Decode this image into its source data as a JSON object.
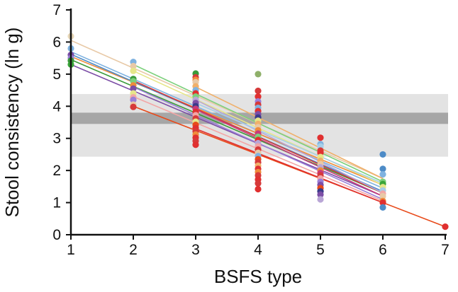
{
  "chart_data": {
    "type": "scatter",
    "xlabel": "BSFS type",
    "ylabel": "Stool consistency (ln g)",
    "xlim": [
      1,
      7
    ],
    "ylim": [
      0,
      7
    ],
    "xticks": [
      "1",
      "2",
      "3",
      "4",
      "5",
      "6",
      "7"
    ],
    "yticks": [
      "0",
      "1",
      "2",
      "3",
      "4",
      "5",
      "6",
      "7"
    ],
    "grid": false,
    "legend": "none",
    "bands": [
      {
        "name": "outer",
        "y0": 2.43,
        "y1": 4.38,
        "color": "#e3e3e3"
      },
      {
        "name": "inner",
        "y0": 3.45,
        "y1": 3.8,
        "color": "#a6a6a6"
      }
    ],
    "fit_lines": [
      {
        "color": "#e8c9a6",
        "x0": 1,
        "y0": 6.05,
        "x1": 6,
        "y1": 1.75
      },
      {
        "color": "#7fb2e0",
        "x0": 1,
        "y0": 5.7,
        "x1": 6,
        "y1": 1.45
      },
      {
        "color": "#3a9a3a",
        "x0": 1,
        "y0": 5.45,
        "x1": 6,
        "y1": 1.3
      },
      {
        "color": "#7c4ea6",
        "x0": 1,
        "y0": 5.3,
        "x1": 6,
        "y1": 1.2
      },
      {
        "color": "#ef8c3a",
        "x0": 1,
        "y0": 5.55,
        "x1": 6,
        "y1": 1.55
      },
      {
        "color": "#4d8bc7",
        "x0": 1,
        "y0": 5.62,
        "x1": 6,
        "y1": 1.35
      },
      {
        "color": "#7cd07c",
        "x0": 2,
        "y0": 5.3,
        "x1": 6,
        "y1": 1.65
      },
      {
        "color": "#e6e68a",
        "x0": 2,
        "y0": 5.1,
        "x1": 6,
        "y1": 1.55
      },
      {
        "color": "#9a7fd8",
        "x0": 2,
        "y0": 4.6,
        "x1": 6,
        "y1": 1.1
      },
      {
        "color": "#d63a3a",
        "x0": 2,
        "y0": 4.8,
        "x1": 6,
        "y1": 1.3
      },
      {
        "color": "#f2a6a6",
        "x0": 2,
        "y0": 4.3,
        "x1": 6,
        "y1": 1.05
      },
      {
        "color": "#e84a1a",
        "x0": 2,
        "y0": 4.0,
        "x1": 7,
        "y1": 0.25
      },
      {
        "color": "#b9a6d6",
        "x0": 3,
        "y0": 4.2,
        "x1": 6,
        "y1": 1.3
      },
      {
        "color": "#e03030",
        "x0": 3,
        "y0": 3.3,
        "x1": 6,
        "y1": 1.0
      },
      {
        "color": "#f0b06a",
        "x0": 3,
        "y0": 4.6,
        "x1": 6,
        "y1": 1.75
      },
      {
        "color": "#a6cfe8",
        "x0": 3,
        "y0": 4.1,
        "x1": 6,
        "y1": 1.6
      },
      {
        "color": "#c93a7a",
        "x0": 3,
        "y0": 3.9,
        "x1": 6,
        "y1": 1.2
      }
    ],
    "points": [
      {
        "x": 1,
        "y": 6.18,
        "c": "#e8d8b8"
      },
      {
        "x": 1,
        "y": 5.8,
        "c": "#7fb2e0"
      },
      {
        "x": 1,
        "y": 5.6,
        "c": "#7c4ea6"
      },
      {
        "x": 1,
        "y": 5.5,
        "c": "#9a7fd8"
      },
      {
        "x": 1,
        "y": 5.42,
        "c": "#3a9a3a"
      },
      {
        "x": 1,
        "y": 5.3,
        "c": "#3aa63a"
      },
      {
        "x": 2,
        "y": 5.38,
        "c": "#7fb2e0"
      },
      {
        "x": 2,
        "y": 5.25,
        "c": "#e8c9a6"
      },
      {
        "x": 2,
        "y": 5.1,
        "c": "#e6e68a"
      },
      {
        "x": 2,
        "y": 4.85,
        "c": "#3a9a3a"
      },
      {
        "x": 2,
        "y": 4.78,
        "c": "#7cd07c"
      },
      {
        "x": 2,
        "y": 4.65,
        "c": "#ef8c3a"
      },
      {
        "x": 2,
        "y": 4.55,
        "c": "#7c4ea6"
      },
      {
        "x": 2,
        "y": 4.4,
        "c": "#e6e68a"
      },
      {
        "x": 2,
        "y": 4.28,
        "c": "#f2a6a6"
      },
      {
        "x": 2,
        "y": 4.2,
        "c": "#9a7fd8"
      },
      {
        "x": 2,
        "y": 4.05,
        "c": "#e8c9a6"
      },
      {
        "x": 2,
        "y": 3.98,
        "c": "#d63a3a"
      },
      {
        "x": 3,
        "y": 5.02,
        "c": "#3a9a3a"
      },
      {
        "x": 3,
        "y": 4.9,
        "c": "#d63a3a"
      },
      {
        "x": 3,
        "y": 4.82,
        "c": "#ef8c3a"
      },
      {
        "x": 3,
        "y": 4.75,
        "c": "#e8c9a6"
      },
      {
        "x": 3,
        "y": 4.62,
        "c": "#f0b06a"
      },
      {
        "x": 3,
        "y": 4.5,
        "c": "#7fb2e0"
      },
      {
        "x": 3,
        "y": 4.4,
        "c": "#e03030"
      },
      {
        "x": 3,
        "y": 4.3,
        "c": "#7cd07c"
      },
      {
        "x": 3,
        "y": 4.2,
        "c": "#b9a6d6"
      },
      {
        "x": 3,
        "y": 4.1,
        "c": "#7c4ea6"
      },
      {
        "x": 3,
        "y": 4.0,
        "c": "#3a3a8a"
      },
      {
        "x": 3,
        "y": 3.92,
        "c": "#c93a7a"
      },
      {
        "x": 3,
        "y": 3.82,
        "c": "#e03030"
      },
      {
        "x": 3,
        "y": 3.72,
        "c": "#f2a6a6"
      },
      {
        "x": 3,
        "y": 3.62,
        "c": "#d63a3a"
      },
      {
        "x": 3,
        "y": 3.52,
        "c": "#e6e68a"
      },
      {
        "x": 3,
        "y": 3.42,
        "c": "#e84a1a"
      },
      {
        "x": 3,
        "y": 3.32,
        "c": "#e03030"
      },
      {
        "x": 3,
        "y": 3.22,
        "c": "#d63a3a"
      },
      {
        "x": 3,
        "y": 3.12,
        "c": "#ef8c3a"
      },
      {
        "x": 3,
        "y": 3.02,
        "c": "#e03030"
      },
      {
        "x": 3,
        "y": 2.92,
        "c": "#d63a3a"
      },
      {
        "x": 3,
        "y": 2.8,
        "c": "#e03030"
      },
      {
        "x": 4,
        "y": 5.0,
        "c": "#8fb06a"
      },
      {
        "x": 4,
        "y": 4.48,
        "c": "#d63a3a"
      },
      {
        "x": 4,
        "y": 4.3,
        "c": "#e03030"
      },
      {
        "x": 4,
        "y": 4.15,
        "c": "#9a7fd8"
      },
      {
        "x": 4,
        "y": 4.05,
        "c": "#d63a3a"
      },
      {
        "x": 4,
        "y": 3.95,
        "c": "#7fb2e0"
      },
      {
        "x": 4,
        "y": 3.85,
        "c": "#e03030"
      },
      {
        "x": 4,
        "y": 3.75,
        "c": "#7c4ea6"
      },
      {
        "x": 4,
        "y": 3.65,
        "c": "#3a3a8a"
      },
      {
        "x": 4,
        "y": 3.55,
        "c": "#e6e68a"
      },
      {
        "x": 4,
        "y": 3.45,
        "c": "#f0b06a"
      },
      {
        "x": 4,
        "y": 3.35,
        "c": "#e8c9a6"
      },
      {
        "x": 4,
        "y": 3.25,
        "c": "#ef8c3a"
      },
      {
        "x": 4,
        "y": 3.15,
        "c": "#c93a7a"
      },
      {
        "x": 4,
        "y": 3.05,
        "c": "#7cd07c"
      },
      {
        "x": 4,
        "y": 2.95,
        "c": "#e03030"
      },
      {
        "x": 4,
        "y": 2.85,
        "c": "#b9a6d6"
      },
      {
        "x": 4,
        "y": 2.75,
        "c": "#f2a6a6"
      },
      {
        "x": 4,
        "y": 2.65,
        "c": "#d63a3a"
      },
      {
        "x": 4,
        "y": 2.55,
        "c": "#e8c9a6"
      },
      {
        "x": 4,
        "y": 2.45,
        "c": "#7fb2e0"
      },
      {
        "x": 4,
        "y": 2.35,
        "c": "#e84a1a"
      },
      {
        "x": 4,
        "y": 2.25,
        "c": "#d63a3a"
      },
      {
        "x": 4,
        "y": 2.15,
        "c": "#f0b06a"
      },
      {
        "x": 4,
        "y": 2.05,
        "c": "#e03030"
      },
      {
        "x": 4,
        "y": 1.95,
        "c": "#ef8c3a"
      },
      {
        "x": 4,
        "y": 1.85,
        "c": "#d63a3a"
      },
      {
        "x": 4,
        "y": 1.72,
        "c": "#e03030"
      },
      {
        "x": 4,
        "y": 1.6,
        "c": "#d63a3a"
      },
      {
        "x": 4,
        "y": 1.42,
        "c": "#e03030"
      },
      {
        "x": 5,
        "y": 3.02,
        "c": "#e03030"
      },
      {
        "x": 5,
        "y": 2.82,
        "c": "#7fb2e0"
      },
      {
        "x": 5,
        "y": 2.75,
        "c": "#a6cfe8"
      },
      {
        "x": 5,
        "y": 2.62,
        "c": "#d63a3a"
      },
      {
        "x": 5,
        "y": 2.55,
        "c": "#e03030"
      },
      {
        "x": 5,
        "y": 2.42,
        "c": "#e6e68a"
      },
      {
        "x": 5,
        "y": 2.3,
        "c": "#f0b06a"
      },
      {
        "x": 5,
        "y": 2.2,
        "c": "#e8c9a6"
      },
      {
        "x": 5,
        "y": 2.1,
        "c": "#b9a6d6"
      },
      {
        "x": 5,
        "y": 2.0,
        "c": "#ef8c3a"
      },
      {
        "x": 5,
        "y": 1.92,
        "c": "#c93a7a"
      },
      {
        "x": 5,
        "y": 1.85,
        "c": "#d63a3a"
      },
      {
        "x": 5,
        "y": 1.75,
        "c": "#f2a6a6"
      },
      {
        "x": 5,
        "y": 1.65,
        "c": "#9a7fd8"
      },
      {
        "x": 5,
        "y": 1.55,
        "c": "#7c4ea6"
      },
      {
        "x": 5,
        "y": 1.45,
        "c": "#e84a1a"
      },
      {
        "x": 5,
        "y": 1.35,
        "c": "#3a3a8a"
      },
      {
        "x": 5,
        "y": 1.25,
        "c": "#7c4ea6"
      },
      {
        "x": 5,
        "y": 1.1,
        "c": "#b9a6d6"
      },
      {
        "x": 6,
        "y": 2.5,
        "c": "#4d8bc7"
      },
      {
        "x": 6,
        "y": 2.05,
        "c": "#4d8bc7"
      },
      {
        "x": 6,
        "y": 1.88,
        "c": "#7fb2e0"
      },
      {
        "x": 6,
        "y": 1.65,
        "c": "#7cd07c"
      },
      {
        "x": 6,
        "y": 1.58,
        "c": "#3aa63a"
      },
      {
        "x": 6,
        "y": 1.48,
        "c": "#e6e68a"
      },
      {
        "x": 6,
        "y": 1.38,
        "c": "#a6cfe8"
      },
      {
        "x": 6,
        "y": 1.28,
        "c": "#f2a6a6"
      },
      {
        "x": 6,
        "y": 1.2,
        "c": "#e8c9a6"
      },
      {
        "x": 6,
        "y": 1.05,
        "c": "#ef8c3a"
      },
      {
        "x": 6,
        "y": 1.0,
        "c": "#e03030"
      },
      {
        "x": 6,
        "y": 0.85,
        "c": "#4d8bc7"
      },
      {
        "x": 7,
        "y": 0.25,
        "c": "#e03030"
      }
    ]
  }
}
